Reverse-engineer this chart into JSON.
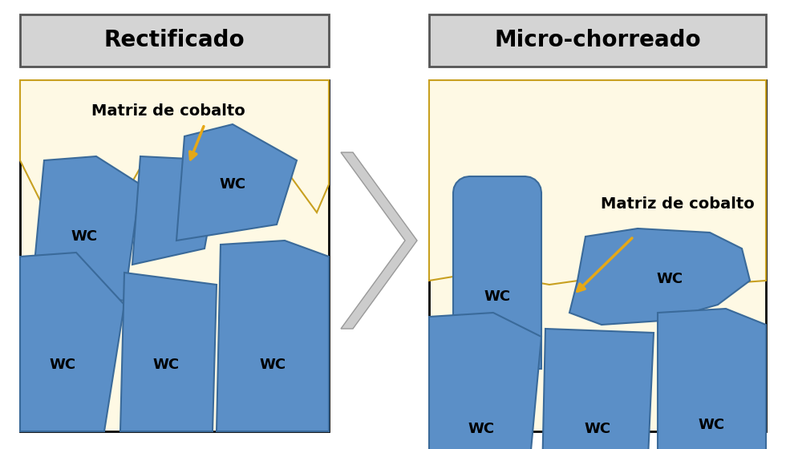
{
  "bg_color": "#ffffff",
  "panel_bg": "#fef9e4",
  "wc_color": "#5b8fc7",
  "wc_edge_color": "#3a6a9a",
  "arrow_color": "#e6a817",
  "header_bg": "#d4d4d4",
  "header_edge": "#555555",
  "title_left": "Rectificado",
  "title_right": "Micro-chorreado",
  "label_cobalt": "Matriz de cobalto",
  "label_wc": "WC",
  "font_size_title": 20,
  "font_size_label": 14,
  "font_size_wc": 13,
  "chevron_color": "#cccccc",
  "chevron_edge": "#999999"
}
